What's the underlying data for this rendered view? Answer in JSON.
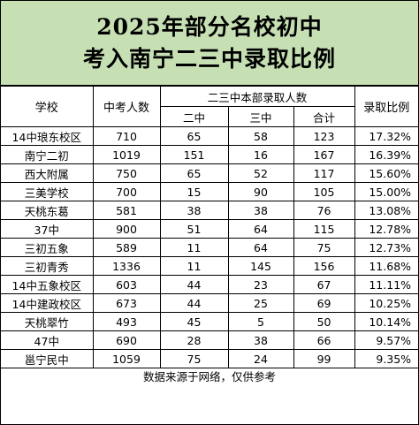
{
  "title": {
    "line1": "2025年部分名校初中",
    "line2": "考入南宁二三中录取比例"
  },
  "headers": {
    "school": "学校",
    "exam_count": "中考人数",
    "group": "二三中本部录取人数",
    "er_zhong": "二中",
    "san_zhong": "三中",
    "total": "合计",
    "ratio": "录取比例"
  },
  "rows": [
    {
      "school": "14中琅东校区",
      "exam": "710",
      "er": "65",
      "san": "58",
      "total": "123",
      "ratio": "17.32%"
    },
    {
      "school": "南宁二初",
      "exam": "1019",
      "er": "151",
      "san": "16",
      "total": "167",
      "ratio": "16.39%"
    },
    {
      "school": "西大附属",
      "exam": "750",
      "er": "65",
      "san": "52",
      "total": "117",
      "ratio": "15.60%"
    },
    {
      "school": "三美学校",
      "exam": "700",
      "er": "15",
      "san": "90",
      "total": "105",
      "ratio": "15.00%"
    },
    {
      "school": "天桃东葛",
      "exam": "581",
      "er": "38",
      "san": "38",
      "total": "76",
      "ratio": "13.08%"
    },
    {
      "school": "37中",
      "exam": "900",
      "er": "51",
      "san": "64",
      "total": "115",
      "ratio": "12.78%"
    },
    {
      "school": "三初五象",
      "exam": "589",
      "er": "11",
      "san": "64",
      "total": "75",
      "ratio": "12.73%"
    },
    {
      "school": "三初青秀",
      "exam": "1336",
      "er": "11",
      "san": "145",
      "total": "156",
      "ratio": "11.68%"
    },
    {
      "school": "14中五象校区",
      "exam": "603",
      "er": "44",
      "san": "23",
      "total": "67",
      "ratio": "11.11%"
    },
    {
      "school": "14中建政校区",
      "exam": "673",
      "er": "44",
      "san": "25",
      "total": "69",
      "ratio": "10.25%"
    },
    {
      "school": "天桃翠竹",
      "exam": "493",
      "er": "45",
      "san": "5",
      "total": "50",
      "ratio": "10.14%"
    },
    {
      "school": "47中",
      "exam": "690",
      "er": "28",
      "san": "38",
      "total": "66",
      "ratio": "9.57%"
    },
    {
      "school": "邕宁民中",
      "exam": "1059",
      "er": "75",
      "san": "24",
      "total": "99",
      "ratio": "9.35%"
    }
  ],
  "footer": "数据来源于网络，仅供参考"
}
